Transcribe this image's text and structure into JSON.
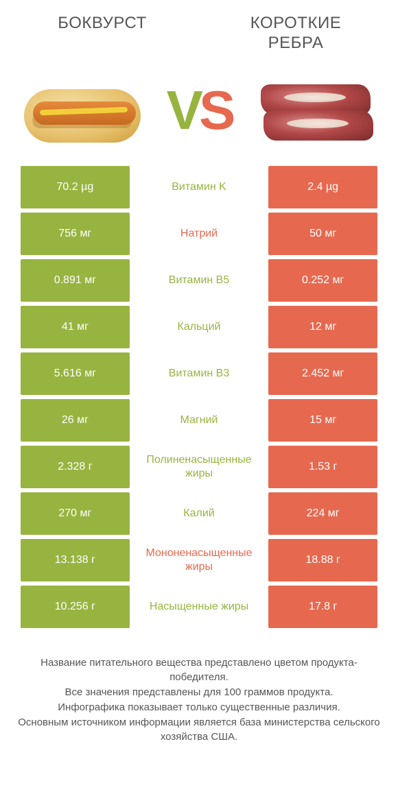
{
  "titles": {
    "left": "БОКВУРСТ",
    "right": "КОРОТКИЕ\nРЕБРА"
  },
  "vs": {
    "v": "V",
    "s": "S"
  },
  "colors": {
    "green": "#97b440",
    "orange": "#e6694f",
    "row_gap": "#ffffff",
    "text_mid_green": "#97b440",
    "text_mid_orange": "#e6694f"
  },
  "rows": [
    {
      "left": "70.2 µg",
      "mid": "Витамин K",
      "right": "2.4 µg",
      "winner": "left"
    },
    {
      "left": "756 мг",
      "mid": "Натрий",
      "right": "50 мг",
      "winner": "right"
    },
    {
      "left": "0.891 мг",
      "mid": "Витамин B5",
      "right": "0.252 мг",
      "winner": "left"
    },
    {
      "left": "41 мг",
      "mid": "Кальций",
      "right": "12 мг",
      "winner": "left"
    },
    {
      "left": "5.616 мг",
      "mid": "Витамин B3",
      "right": "2.452 мг",
      "winner": "left"
    },
    {
      "left": "26 мг",
      "mid": "Магний",
      "right": "15 мг",
      "winner": "left"
    },
    {
      "left": "2.328 г",
      "mid": "Полиненасыщенные жиры",
      "right": "1.53 г",
      "winner": "left"
    },
    {
      "left": "270 мг",
      "mid": "Калий",
      "right": "224 мг",
      "winner": "left"
    },
    {
      "left": "13.138 г",
      "mid": "Мононенасыщенные жиры",
      "right": "18.88 г",
      "winner": "right"
    },
    {
      "left": "10.256 г",
      "mid": "Насыщенные жиры",
      "right": "17.8 г",
      "winner": "left"
    }
  ],
  "footer": [
    "Название питательного вещества представлено цветом продукта-победителя.",
    "Все значения представлены для 100 граммов продукта.",
    "Инфографика показывает только существенные различия.",
    "Основным источником информации является база министерства сельского хозяйства США."
  ]
}
